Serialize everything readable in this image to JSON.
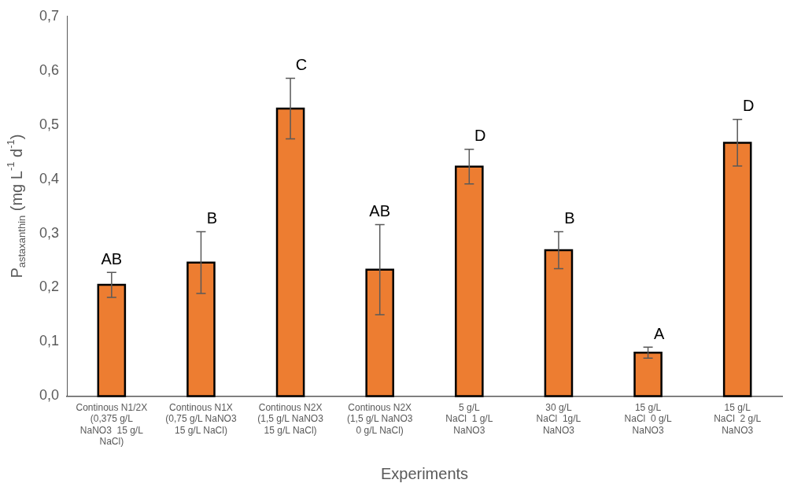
{
  "chart_data": {
    "type": "bar",
    "xlabel": "Experiments",
    "ylabel": "P$_{astaxanthin}$ (mg L$^{-1}$ d$^{-1}$)",
    "categories": [
      "Continous N1/2X\n(0,375 g/L\nNaNO3  15 g/L\nNaCl)",
      "Continous N1X\n(0,75 g/L NaNO3\n15 g/L NaCl)",
      "Continous N2X\n(1,5 g/L NaNO3\n15 g/L NaCl)",
      "Continous N2X\n(1,5 g/L NaNO3\n0 g/L NaCl)",
      "5 g/L\nNaCl  1 g/L\nNaNO3",
      "30 g/L\nNaCl  1g/L\nNaNO3",
      "15 g/L\nNaCl  0 g/L\nNaNO3",
      "15 g/L\nNaCl  2 g/L\nNaNO3"
    ],
    "values": [
      0.205,
      0.246,
      0.53,
      0.233,
      0.423,
      0.269,
      0.08,
      0.467
    ],
    "errors": [
      0.023,
      0.057,
      0.056,
      0.083,
      0.032,
      0.034,
      0.01,
      0.043
    ],
    "color": "#ed7d31",
    "ylim": [
      0,
      0.7
    ],
    "yticks": [
      {
        "value": 0,
        "label": "0,0"
      },
      {
        "value": 0.1,
        "label": "0,1"
      },
      {
        "value": 0.2,
        "label": "0,2"
      },
      {
        "value": 0.3,
        "label": "0,3"
      },
      {
        "value": 0.4,
        "label": "0,4"
      },
      {
        "value": 0.5,
        "label": "0,5"
      },
      {
        "value": 0.6,
        "label": "0,6"
      },
      {
        "value": 0.7,
        "label": "0,7"
      }
    ],
    "grid": false,
    "legend": false,
    "annotations": [
      {
        "text": "AB",
        "x": "Continous N1/2X\n(0,375 g/L\nNaNO3  15 g/L\nNaCl)",
        "y": 0.228
      },
      {
        "text": "B",
        "x": "Continous N1X\n(0,75 g/L NaNO3\n15 g/L NaCl)",
        "y": 0.303
      },
      {
        "text": "C",
        "x": "Continous N2X\n(1,5 g/L NaNO3\n15 g/L NaCl)",
        "y": 0.586
      },
      {
        "text": "AB",
        "x": "Continous N2X\n(1,5 g/L NaNO3\n0 g/L NaCl)",
        "y": 0.316
      },
      {
        "text": "D",
        "x": "5 g/L\nNaCl  1 g/L\nNaNO3",
        "y": 0.455
      },
      {
        "text": "B",
        "x": "30 g/L\nNaCl  1g/L\nNaNO3",
        "y": 0.303
      },
      {
        "text": "A",
        "x": "15 g/L\nNaCl  0 g/L\nNaNO3",
        "y": 0.09
      },
      {
        "text": "D",
        "x": "15 g/L\nNaCl  2 g/L\nNaNO3",
        "y": 0.51
      }
    ]
  }
}
